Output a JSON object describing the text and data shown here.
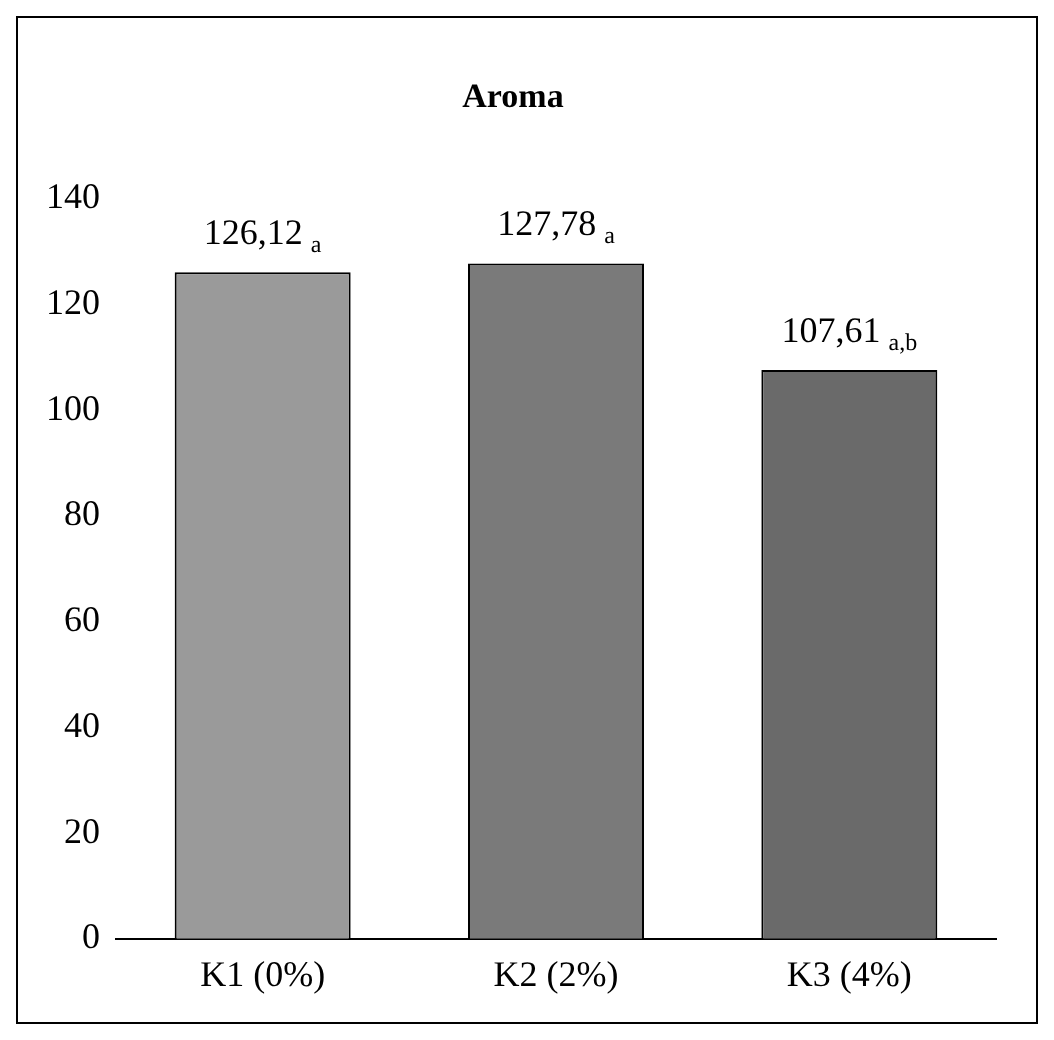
{
  "chart_data": {
    "type": "bar",
    "title": "Aroma",
    "categories": [
      "K1 (0%)",
      "K2 (2%)",
      "K3 (4%)"
    ],
    "values": [
      126.12,
      127.78,
      107.61
    ],
    "value_labels": [
      "126,12 $_{a}$",
      "127,78 $_{a}$",
      "107,61 $_{a,b}$"
    ],
    "colors": [
      "#9a9a9a",
      "#7a7a7a",
      "#6a6a6a"
    ],
    "ylim": [
      0,
      140
    ],
    "yticks": [
      0,
      20,
      40,
      60,
      80,
      100,
      120,
      140
    ],
    "grid": false,
    "legend": false
  }
}
